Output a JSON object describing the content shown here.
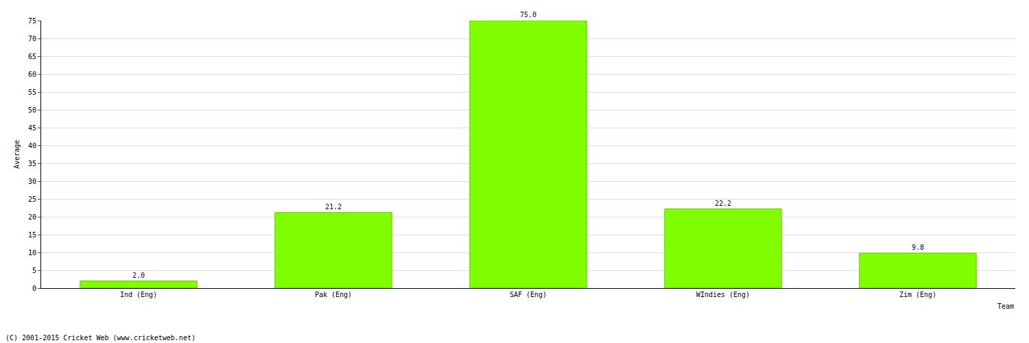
{
  "chart_data": {
    "type": "bar",
    "x_label": "Team",
    "y_label": "Average",
    "categories": [
      "Ind (Eng)",
      "Pak (Eng)",
      "SAF (Eng)",
      "WIndies (Eng)",
      "Zim (Eng)"
    ],
    "values": [
      2.0,
      21.2,
      75.0,
      22.2,
      9.8
    ],
    "value_labels": [
      "2.0",
      "21.2",
      "75.0",
      "22.2",
      "9.8"
    ],
    "data_labels": true,
    "color": "#80ff00",
    "ylim": [
      0,
      75
    ],
    "yticks": [
      0,
      5,
      10,
      15,
      20,
      25,
      30,
      35,
      40,
      45,
      50,
      55,
      60,
      65,
      70,
      75
    ],
    "grid": true,
    "annotations": [
      "(C) 2001-2015 Cricket Web (www.cricketweb.net)"
    ]
  }
}
